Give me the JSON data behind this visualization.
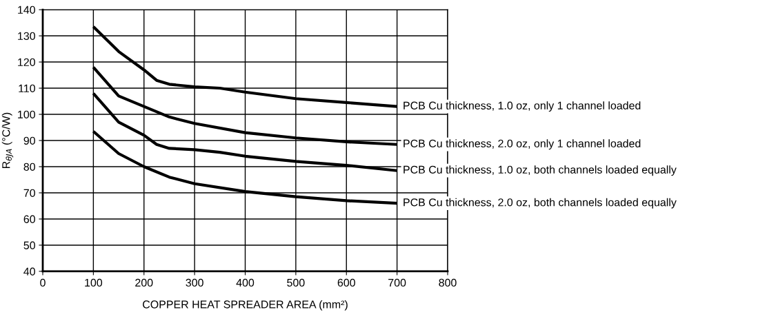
{
  "chart_data": {
    "type": "line",
    "xlabel": "COPPER HEAT SPREADER AREA (mm²)",
    "ylabel": "R$_{θJA}$ (°C/W)",
    "xlim": [
      0,
      800
    ],
    "xticks": [
      0,
      100,
      200,
      300,
      400,
      500,
      600,
      700,
      800
    ],
    "ylim": [
      40,
      140
    ],
    "yticks": [
      40,
      50,
      60,
      70,
      80,
      90,
      100,
      110,
      120,
      130,
      140
    ],
    "grid": true,
    "marker": "none",
    "line_style": "solid",
    "series": [
      {
        "name": "PCB Cu thickness, 1.0 oz, only 1 channel loaded",
        "color": "#000000",
        "x": [
          100,
          150,
          200,
          225,
          250,
          300,
          350,
          400,
          500,
          600,
          700
        ],
        "values": [
          133.5,
          124,
          117,
          113,
          111.5,
          110.5,
          110,
          108.5,
          106,
          104.5,
          103
        ]
      },
      {
        "name": "PCB Cu thickness, 2.0 oz, only 1 channel loaded",
        "color": "#000000",
        "x": [
          100,
          150,
          200,
          250,
          300,
          400,
          500,
          600,
          700
        ],
        "values": [
          118,
          107,
          103,
          99,
          96.5,
          93,
          91,
          89.5,
          88.5
        ]
      },
      {
        "name": "PCB Cu thickness, 1.0 oz, both channels loaded equally",
        "color": "#000000",
        "x": [
          100,
          150,
          200,
          225,
          250,
          300,
          350,
          400,
          500,
          600,
          700
        ],
        "values": [
          108,
          97,
          92,
          88.5,
          87,
          86.5,
          85.5,
          84,
          82,
          80.5,
          78.5
        ]
      },
      {
        "name": "PCB Cu thickness, 2.0 oz, both channels loaded equally",
        "color": "#000000",
        "x": [
          100,
          150,
          200,
          250,
          300,
          400,
          500,
          600,
          700
        ],
        "values": [
          93.5,
          85,
          80,
          76,
          73.5,
          70.5,
          68.5,
          67,
          66
        ]
      }
    ]
  }
}
